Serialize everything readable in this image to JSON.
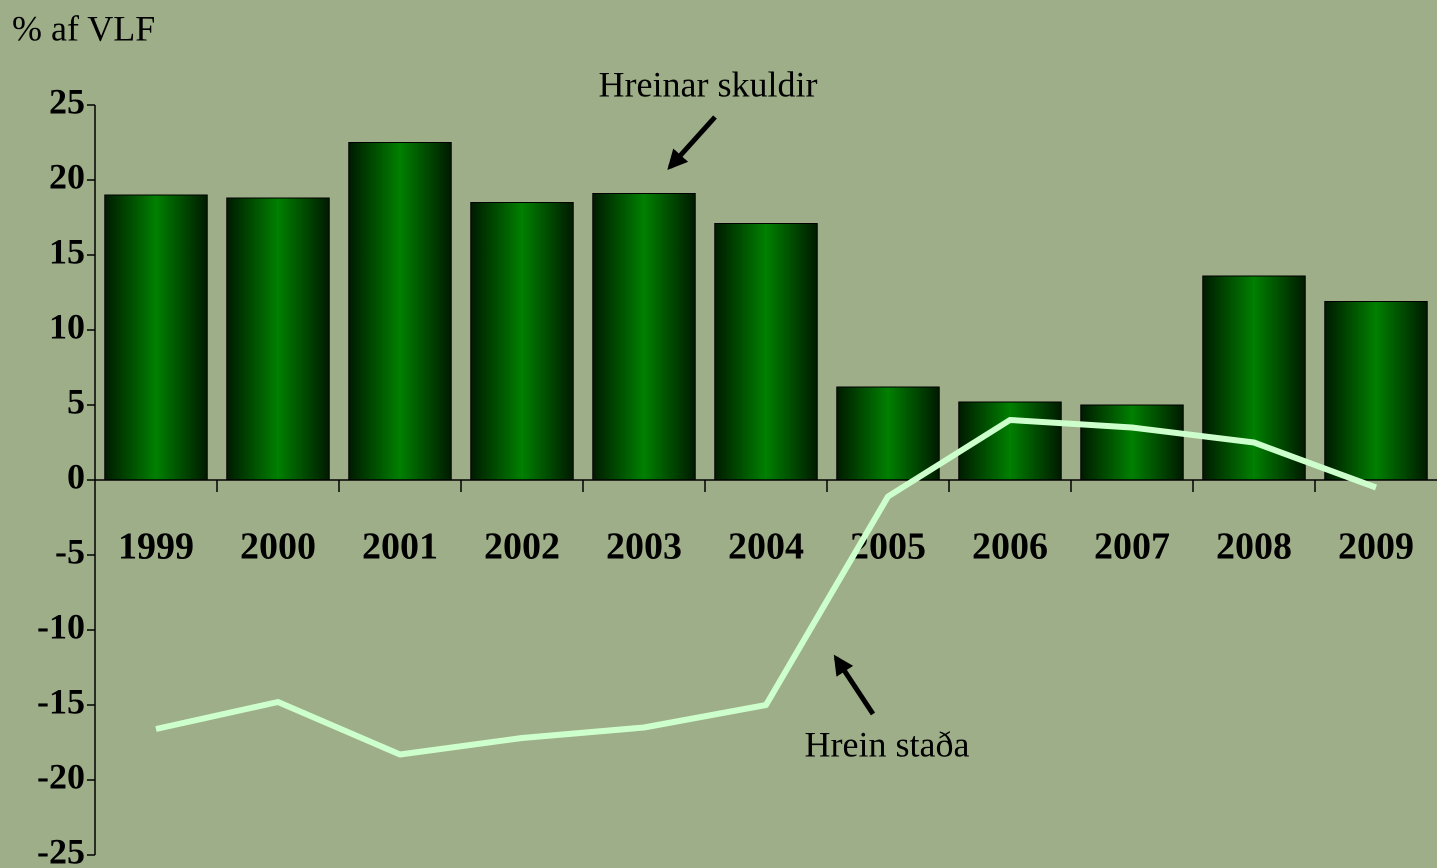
{
  "chart_data": {
    "type": "bar-line",
    "title": "% af VLF",
    "categories": [
      "1999",
      "2000",
      "2001",
      "2002",
      "2003",
      "2004",
      "2005",
      "2006",
      "2007",
      "2008",
      "2009"
    ],
    "series": [
      {
        "name": "Hreinar skuldir",
        "type": "bar",
        "color": "#008000",
        "values": [
          19,
          18.8,
          22.5,
          18.5,
          19.1,
          17.1,
          6.2,
          5.2,
          5.0,
          13.6,
          11.9
        ]
      },
      {
        "name": "Hrein staða",
        "type": "line",
        "color": "#ccffcc",
        "values": [
          -16.6,
          -14.8,
          -18.3,
          -17.2,
          -16.5,
          -15.0,
          -1.1,
          4.0,
          3.5,
          2.5,
          -0.5
        ]
      }
    ],
    "ylim": [
      -25,
      25
    ],
    "yticks": [
      -25,
      -20,
      -15,
      -10,
      -5,
      0,
      5,
      10,
      15,
      20,
      25
    ]
  }
}
